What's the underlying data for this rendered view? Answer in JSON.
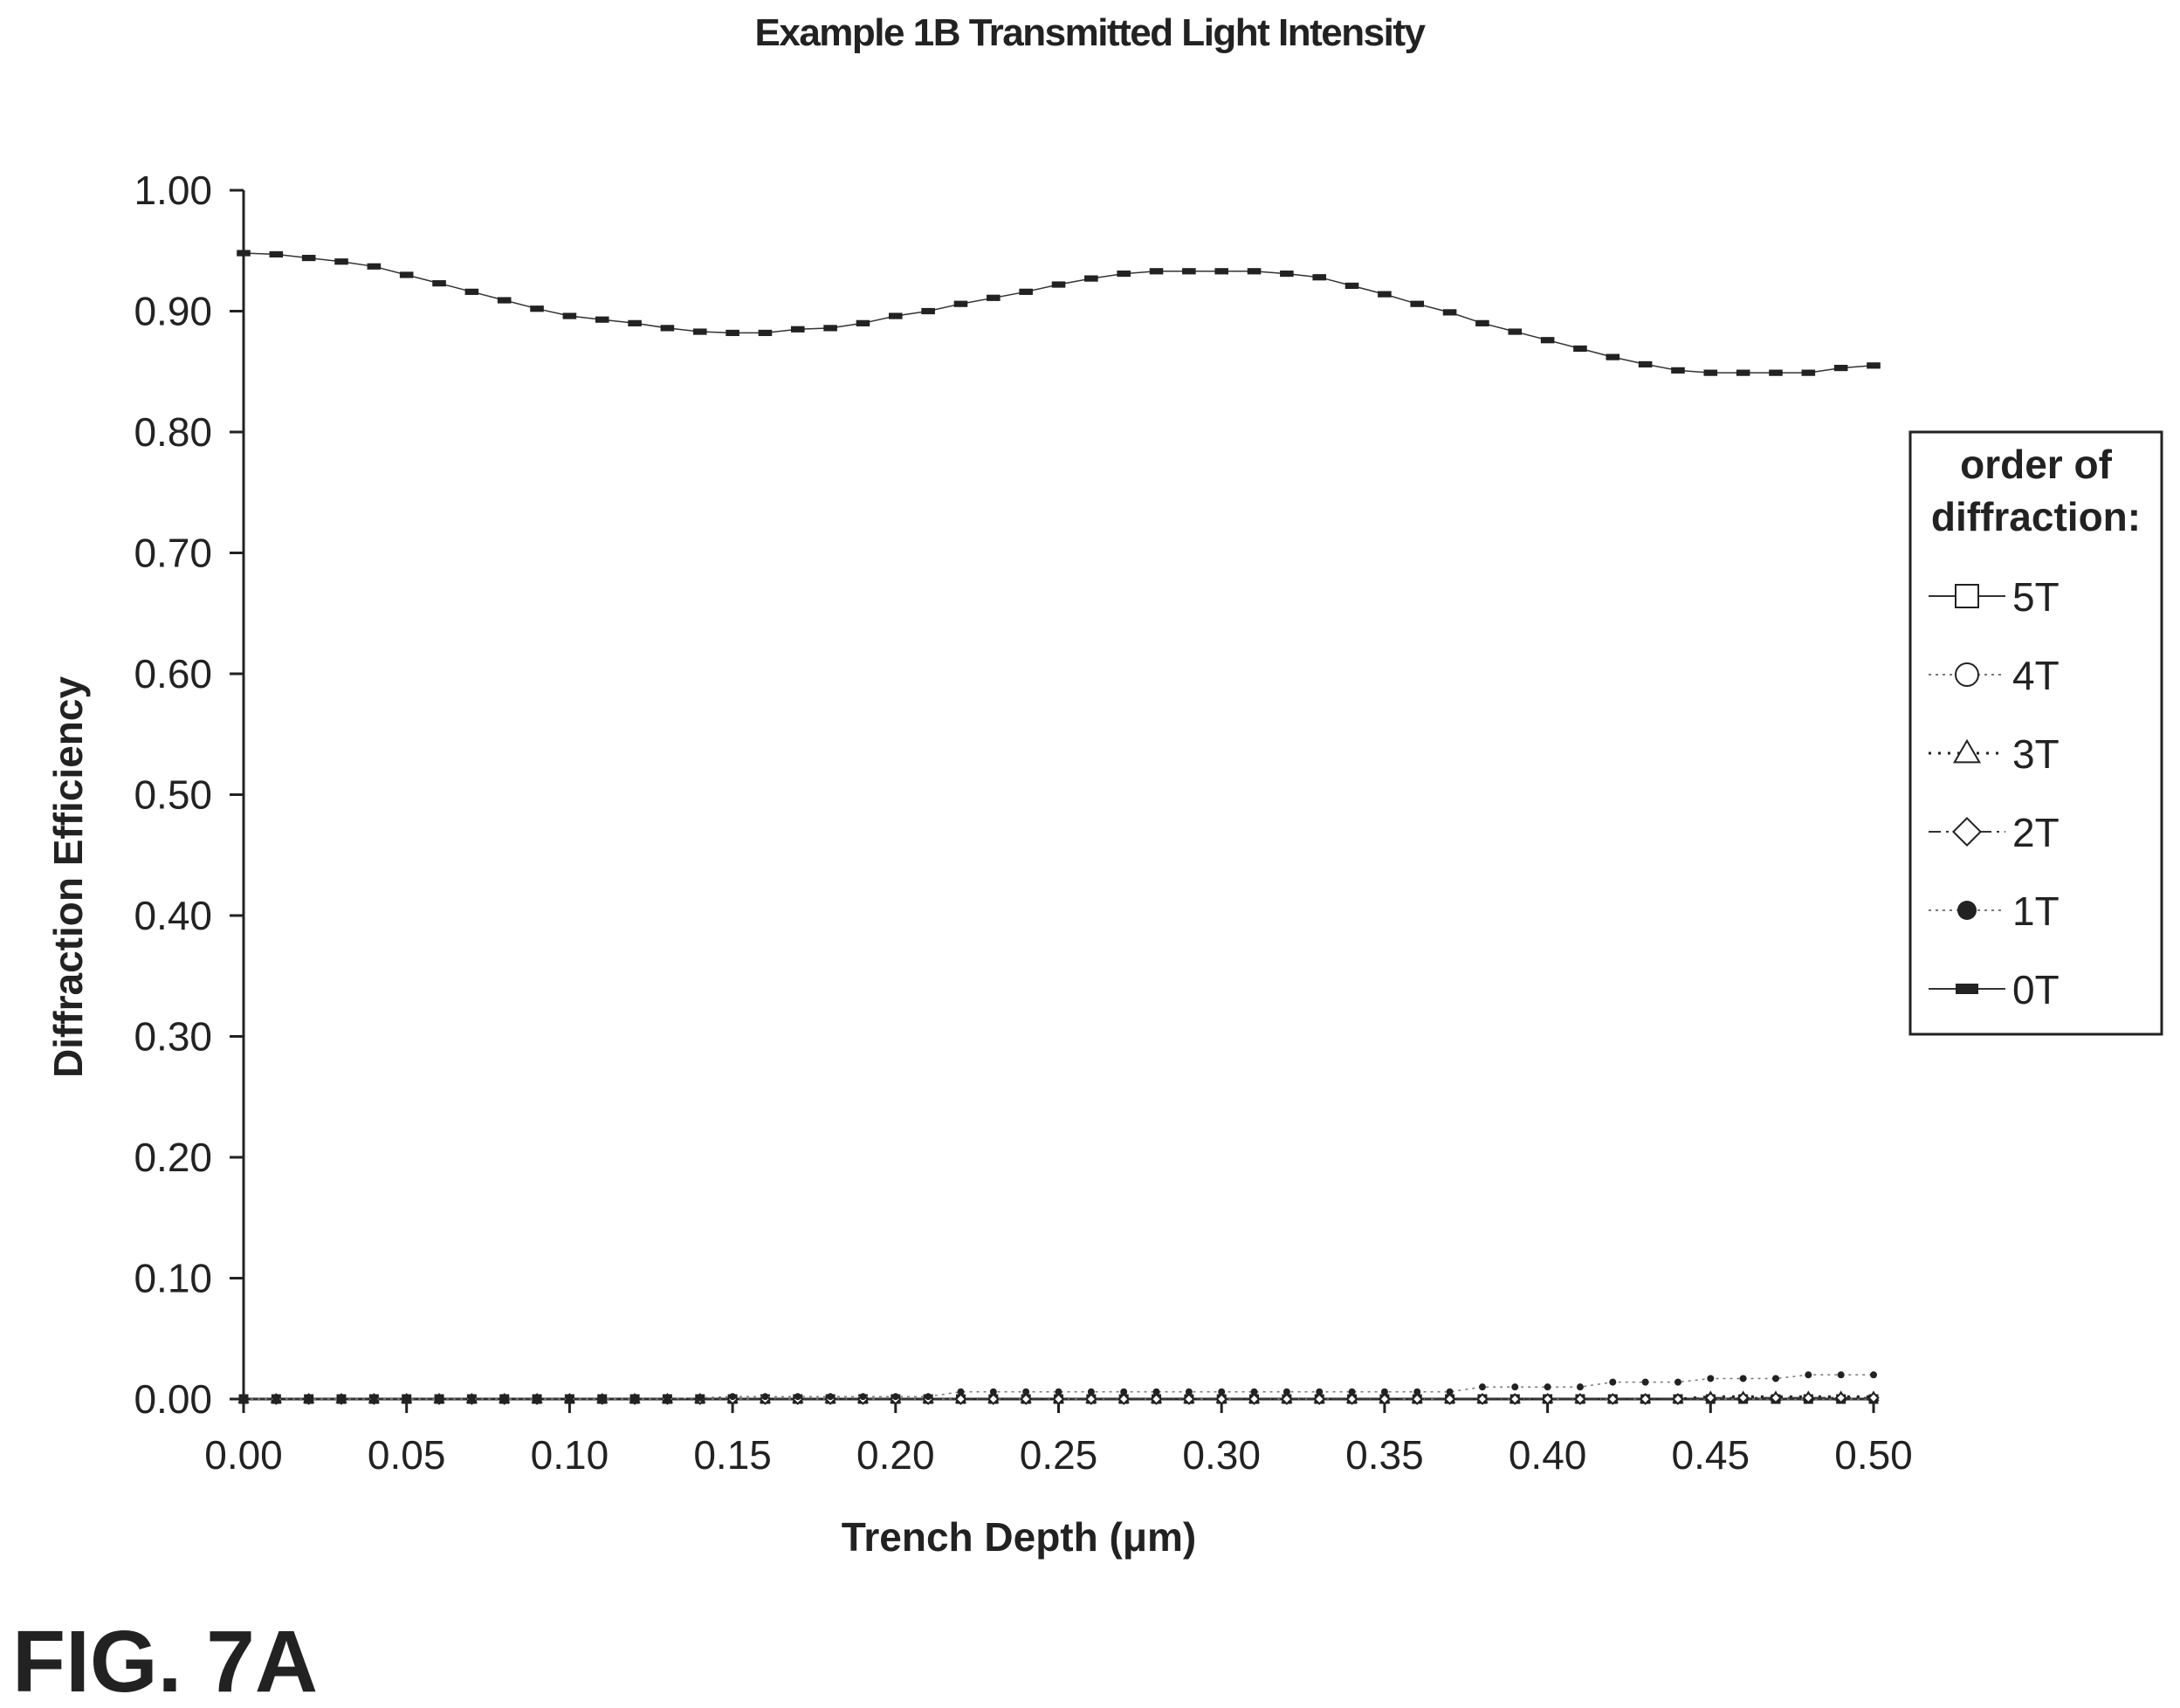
{
  "figure_label": "FIG. 7A",
  "chart_data": {
    "type": "line",
    "title": "Example 1B Transmitted Light Intensity",
    "xlabel": "Trench Depth (μm)",
    "ylabel": "Diffraction Efficiency",
    "xlim": [
      0.0,
      0.5
    ],
    "ylim": [
      0.0,
      1.0
    ],
    "x_ticks": [
      "0.00",
      "0.05",
      "0.10",
      "0.15",
      "0.20",
      "0.25",
      "0.30",
      "0.35",
      "0.40",
      "0.45",
      "0.50"
    ],
    "y_ticks": [
      "0.00",
      "0.10",
      "0.20",
      "0.30",
      "0.40",
      "0.50",
      "0.60",
      "0.70",
      "0.80",
      "0.90",
      "1.00"
    ],
    "grid": false,
    "legend_title": "order of diffraction:",
    "legend_position": "right",
    "x": [
      0.0,
      0.01,
      0.02,
      0.03,
      0.04,
      0.05,
      0.06,
      0.07,
      0.08,
      0.09,
      0.1,
      0.11,
      0.12,
      0.13,
      0.14,
      0.15,
      0.16,
      0.17,
      0.18,
      0.19,
      0.2,
      0.21,
      0.22,
      0.23,
      0.24,
      0.25,
      0.26,
      0.27,
      0.28,
      0.29,
      0.3,
      0.31,
      0.32,
      0.33,
      0.34,
      0.35,
      0.36,
      0.37,
      0.38,
      0.39,
      0.4,
      0.41,
      0.42,
      0.43,
      0.44,
      0.45,
      0.46,
      0.47,
      0.48,
      0.49,
      0.5
    ],
    "series": [
      {
        "name": "5T",
        "marker": "square-open",
        "dash": "solid",
        "values": [
          0,
          0,
          0,
          0,
          0,
          0,
          0,
          0,
          0,
          0,
          0,
          0,
          0,
          0,
          0,
          0,
          0,
          0,
          0,
          0,
          0,
          0,
          0,
          0,
          0,
          0,
          0,
          0,
          0,
          0,
          0,
          0,
          0,
          0,
          0,
          0,
          0,
          0,
          0,
          0,
          0,
          0,
          0,
          0,
          0,
          0,
          0,
          0,
          0,
          0,
          0
        ]
      },
      {
        "name": "4T",
        "marker": "circle-open",
        "dash": "dotted-light",
        "values": [
          0,
          0,
          0,
          0,
          0,
          0,
          0,
          0,
          0,
          0,
          0,
          0,
          0,
          0,
          0,
          0,
          0,
          0,
          0,
          0,
          0,
          0,
          0,
          0,
          0,
          0,
          0,
          0,
          0,
          0,
          0,
          0,
          0,
          0,
          0,
          0,
          0,
          0,
          0,
          0,
          0,
          0,
          0,
          0,
          0,
          0,
          0,
          0,
          0,
          0,
          0
        ]
      },
      {
        "name": "3T",
        "marker": "triangle-open",
        "dash": "dotted",
        "values": [
          0,
          0,
          0,
          0,
          0,
          0,
          0,
          0,
          0,
          0,
          0,
          0,
          0,
          0,
          0,
          0,
          0,
          0,
          0,
          0,
          0,
          0,
          0,
          0,
          0,
          0,
          0,
          0,
          0,
          0,
          0,
          0,
          0,
          0,
          0,
          0,
          0,
          0,
          0,
          0,
          0,
          0,
          0,
          0,
          0,
          0.002,
          0.002,
          0.002,
          0.002,
          0.002,
          0.002
        ]
      },
      {
        "name": "2T",
        "marker": "diamond-open",
        "dash": "dashdot",
        "values": [
          0,
          0,
          0,
          0,
          0,
          0,
          0,
          0,
          0,
          0,
          0,
          0,
          0,
          0,
          0,
          0,
          0,
          0,
          0,
          0,
          0,
          0,
          0,
          0,
          0,
          0,
          0,
          0,
          0,
          0,
          0,
          0,
          0,
          0,
          0,
          0,
          0,
          0,
          0,
          0,
          0,
          0,
          0,
          0,
          0,
          0.001,
          0.001,
          0.001,
          0.001,
          0.001,
          0.001
        ]
      },
      {
        "name": "1T",
        "marker": "circle-filled",
        "dash": "dotted-light",
        "values": [
          0,
          0,
          0,
          0,
          0,
          0,
          0,
          0,
          0,
          0,
          0,
          0,
          0,
          0,
          0.001,
          0.002,
          0.002,
          0.002,
          0.002,
          0.002,
          0.002,
          0.002,
          0.006,
          0.006,
          0.006,
          0.006,
          0.006,
          0.006,
          0.006,
          0.006,
          0.006,
          0.006,
          0.006,
          0.006,
          0.006,
          0.006,
          0.006,
          0.006,
          0.01,
          0.01,
          0.01,
          0.01,
          0.014,
          0.014,
          0.014,
          0.017,
          0.017,
          0.017,
          0.02,
          0.02,
          0.02
        ]
      },
      {
        "name": "0T",
        "marker": "square-filled",
        "dash": "solid",
        "values": [
          0.948,
          0.947,
          0.944,
          0.941,
          0.937,
          0.93,
          0.923,
          0.916,
          0.909,
          0.902,
          0.896,
          0.893,
          0.89,
          0.886,
          0.883,
          0.882,
          0.882,
          0.885,
          0.886,
          0.89,
          0.896,
          0.9,
          0.906,
          0.911,
          0.916,
          0.922,
          0.927,
          0.931,
          0.933,
          0.933,
          0.933,
          0.933,
          0.931,
          0.928,
          0.921,
          0.914,
          0.906,
          0.899,
          0.89,
          0.883,
          0.876,
          0.869,
          0.862,
          0.856,
          0.851,
          0.849,
          0.849,
          0.849,
          0.849,
          0.853,
          0.855
        ]
      }
    ]
  }
}
